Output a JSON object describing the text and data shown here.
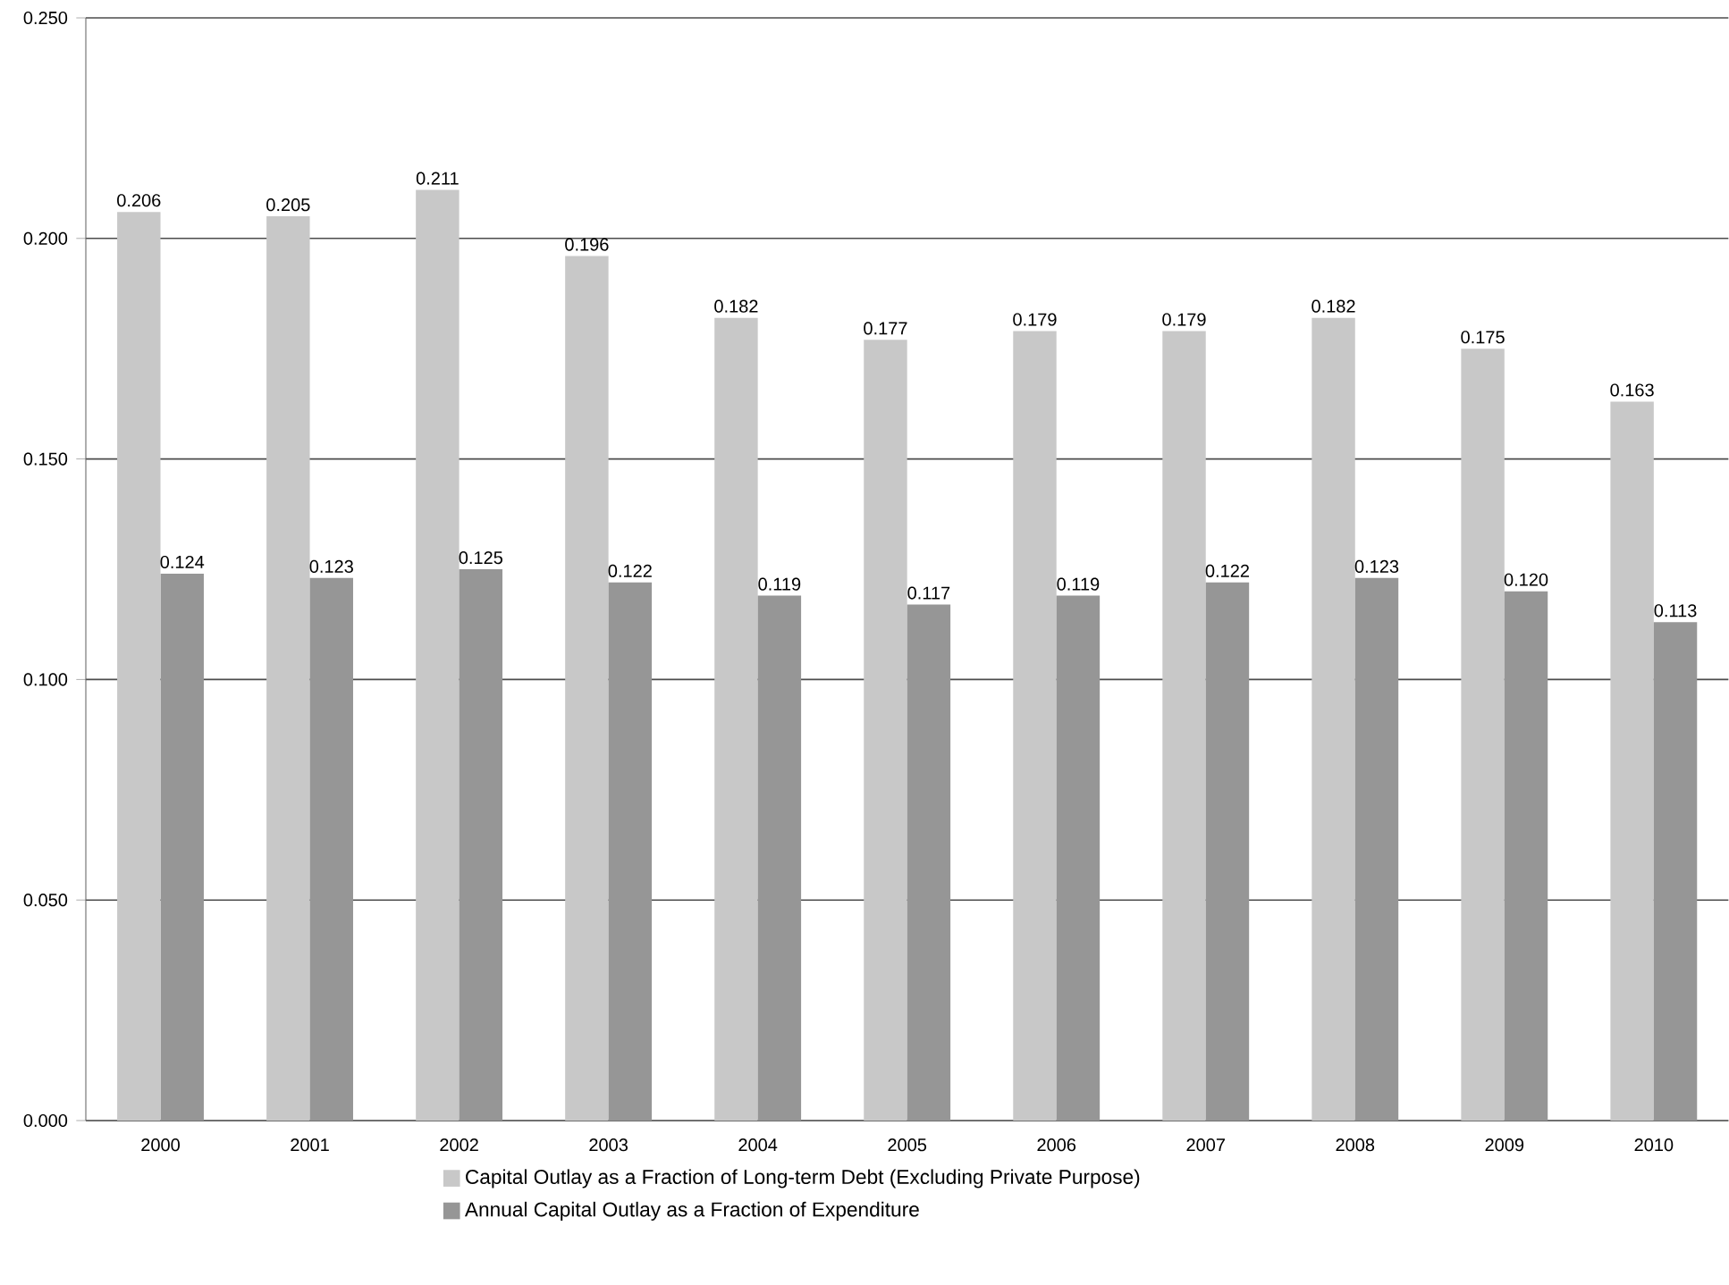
{
  "chart_data": {
    "type": "bar",
    "categories": [
      "2000",
      "2001",
      "2002",
      "2003",
      "2004",
      "2005",
      "2006",
      "2007",
      "2008",
      "2009",
      "2010"
    ],
    "series": [
      {
        "name": "Capital Outlay as a Fraction of Long-term Debt (Excluding Private Purpose)",
        "color": "#c8c8c8",
        "values": [
          0.206,
          0.205,
          0.211,
          0.196,
          0.182,
          0.177,
          0.179,
          0.179,
          0.182,
          0.175,
          0.163
        ],
        "value_labels": [
          "0.206",
          "0.205",
          "0.211",
          "0.196",
          "0.182",
          "0.177",
          "0.179",
          "0.179",
          "0.182",
          "0.175",
          "0.163"
        ]
      },
      {
        "name": "Annual Capital Outlay as a Fraction of Expenditure",
        "color": "#969696",
        "values": [
          0.124,
          0.123,
          0.125,
          0.122,
          0.119,
          0.117,
          0.119,
          0.122,
          0.123,
          0.12,
          0.113
        ],
        "value_labels": [
          "0.124",
          "0.123",
          "0.125",
          "0.122",
          "0.119",
          "0.117",
          "0.119",
          "0.122",
          "0.123",
          "0.120",
          "0.113"
        ]
      }
    ],
    "ylim": [
      0,
      0.25
    ],
    "yticks": [
      {
        "value": 0,
        "label": "0.000"
      },
      {
        "value": 0.05,
        "label": "0.050"
      },
      {
        "value": 0.1,
        "label": "0.100"
      },
      {
        "value": 0.15,
        "label": "0.150"
      },
      {
        "value": 0.2,
        "label": "0.200"
      },
      {
        "value": 0.25,
        "label": "0.250"
      }
    ],
    "grid": "y",
    "legend": "bottom"
  }
}
